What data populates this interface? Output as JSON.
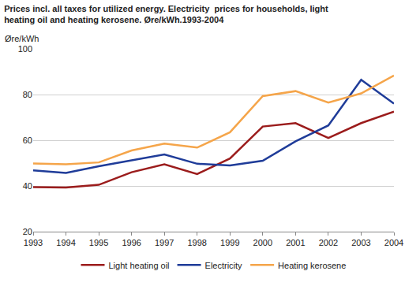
{
  "chart_data": {
    "type": "line",
    "title": [
      "Prices incl. all taxes for utilized energy. Electricity  prices for households, light",
      "heating oil and heating kerosene. Øre/kWh.1993-2004"
    ],
    "y_label": "Øre/kWh",
    "categories": [
      "1993",
      "1994",
      "1995",
      "1996",
      "1997",
      "1998",
      "1999",
      "2000",
      "2001",
      "2002",
      "2003",
      "2004"
    ],
    "series": [
      {
        "name": "Light heating oil",
        "color": "#9b1c1c",
        "values": [
          39.5,
          39.3,
          40.5,
          46,
          49.5,
          45.2,
          52,
          66,
          67.5,
          61,
          67.5,
          72.5
        ]
      },
      {
        "name": "Electricity",
        "color": "#1f3c99",
        "values": [
          46.8,
          45.7,
          48.6,
          51.2,
          53.8,
          49.7,
          49,
          51,
          59.5,
          66.5,
          86.5,
          76
        ]
      },
      {
        "name": "Heating kerosene",
        "color": "#f5a54a",
        "values": [
          49.8,
          49.5,
          50.3,
          55.5,
          58.5,
          56.8,
          63.5,
          79.3,
          81.5,
          76.5,
          80.5,
          88.3
        ]
      }
    ],
    "ylim": [
      20,
      100
    ],
    "yticks": [
      20,
      40,
      60,
      80,
      100
    ],
    "grid": true,
    "legend": "bottom"
  }
}
